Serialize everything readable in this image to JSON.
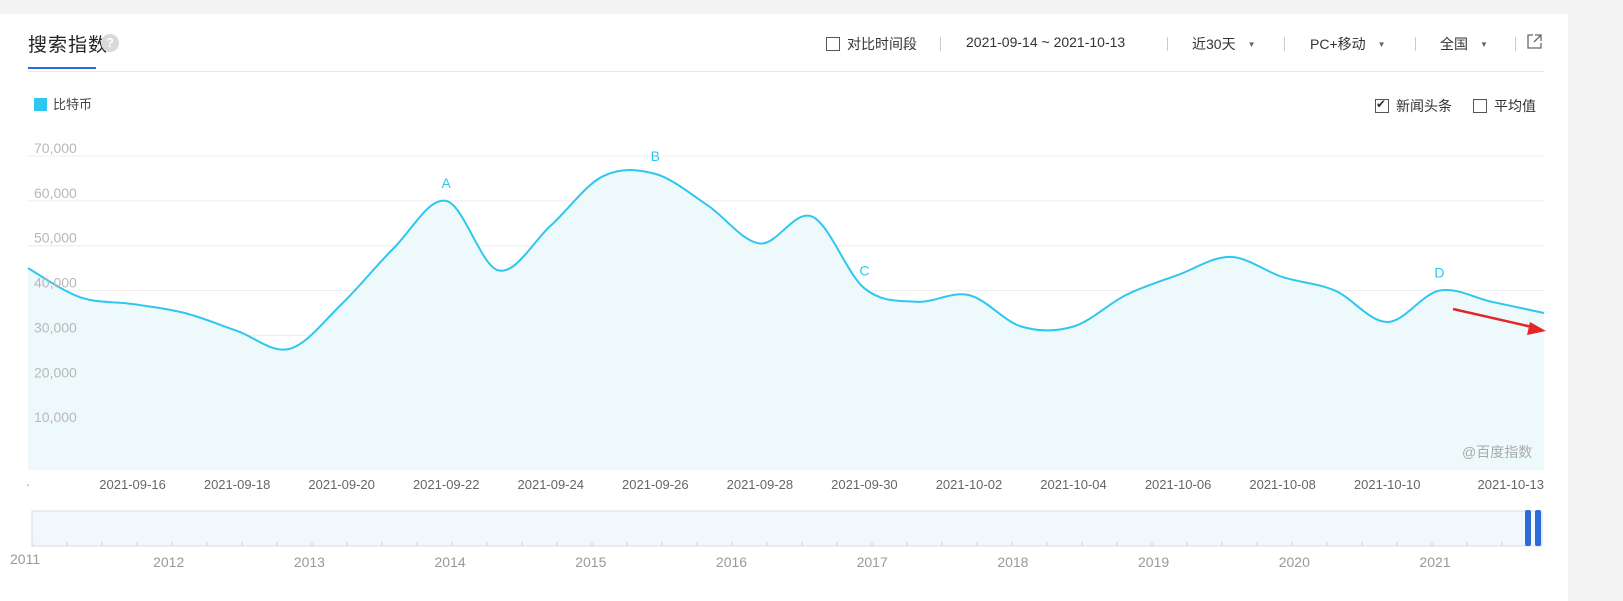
{
  "header": {
    "title": "搜索指数",
    "help_icon": "question-icon",
    "compare_label": "对比时间段",
    "date_range": "2021-09-14 ~ 2021-10-13",
    "period": "近30天",
    "device": "PC+移动",
    "region": "全国",
    "export_icon": "export-icon"
  },
  "legend": {
    "series_label": "比特币",
    "color": "#2ec7f0"
  },
  "options": {
    "news_label": "新闻头条",
    "news_checked": true,
    "avg_label": "平均值",
    "avg_checked": false
  },
  "watermark": "@百度指数",
  "chart_data": {
    "type": "area",
    "x": [
      "2021-09-14",
      "2021-09-15",
      "2021-09-16",
      "2021-09-17",
      "2021-09-18",
      "2021-09-19",
      "2021-09-20",
      "2021-09-21",
      "2021-09-22",
      "2021-09-23",
      "2021-09-24",
      "2021-09-25",
      "2021-09-26",
      "2021-09-27",
      "2021-09-28",
      "2021-09-29",
      "2021-09-30",
      "2021-10-01",
      "2021-10-02",
      "2021-10-03",
      "2021-10-04",
      "2021-10-05",
      "2021-10-06",
      "2021-10-07",
      "2021-10-08",
      "2021-10-09",
      "2021-10-10",
      "2021-10-11",
      "2021-10-12",
      "2021-10-13"
    ],
    "series": [
      {
        "name": "比特币",
        "values": [
          45000,
          38500,
          37000,
          35000,
          31000,
          27000,
          37000,
          49500,
          60000,
          44500,
          54500,
          65500,
          66000,
          59000,
          50500,
          56500,
          40500,
          37500,
          39000,
          32000,
          32000,
          39000,
          43500,
          47500,
          43000,
          40000,
          33000,
          40000,
          37500,
          35000
        ]
      }
    ],
    "ylim": [
      0,
      70000
    ],
    "yticks": [
      "10,000",
      "20,000",
      "30,000",
      "40,000",
      "50,000",
      "60,000",
      "70,000"
    ],
    "xtick_labels": [
      "2021-09-16",
      "2021-09-18",
      "2021-09-20",
      "2021-09-22",
      "2021-09-24",
      "2021-09-26",
      "2021-09-28",
      "2021-09-30",
      "2021-10-02",
      "2021-10-04",
      "2021-10-06",
      "2021-10-08",
      "2021-10-10",
      "2021-10-13"
    ],
    "annotations": [
      {
        "label": "A",
        "x": "2021-09-22"
      },
      {
        "label": "B",
        "x": "2021-09-26"
      },
      {
        "label": "C",
        "x": "2021-09-30"
      },
      {
        "label": "D",
        "x": "2021-10-11"
      }
    ],
    "grid": true,
    "line_color": "#2ec7f0",
    "fill_color": "#eef9fc",
    "arrow_color": "#e32626"
  },
  "navigator": {
    "year_labels": [
      "2011",
      "2012",
      "2013",
      "2014",
      "2015",
      "2016",
      "2017",
      "2018",
      "2019",
      "2020",
      "2021"
    ],
    "handle_color": "#2b6cd8"
  }
}
